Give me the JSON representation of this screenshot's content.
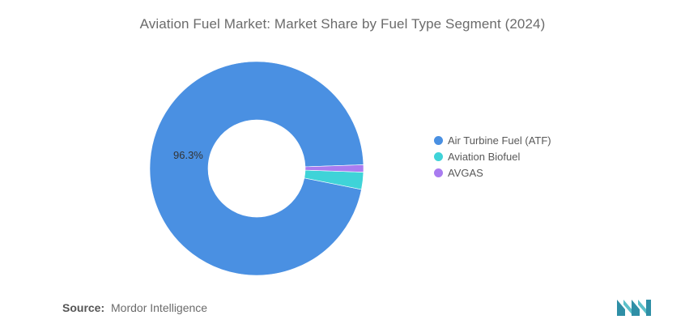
{
  "chart_data": {
    "type": "pie",
    "variant": "donut",
    "title": "Aviation Fuel Market: Market Share by Fuel Type Segment (2024)",
    "categories": [
      "Air Turbine Fuel (ATF)",
      "Aviation Biofuel",
      "AVGAS"
    ],
    "values": [
      96.3,
      2.6,
      1.1
    ],
    "colors": [
      "#4a90e2",
      "#3fd3d8",
      "#a97cf0"
    ],
    "data_labels": [
      "96.3%",
      "",
      ""
    ],
    "legend_position": "right"
  },
  "source": {
    "label": "Source:",
    "text": "Mordor Intelligence"
  },
  "logo": {
    "icon": "mordor-intelligence-logo",
    "color": "#2f8fa6"
  }
}
